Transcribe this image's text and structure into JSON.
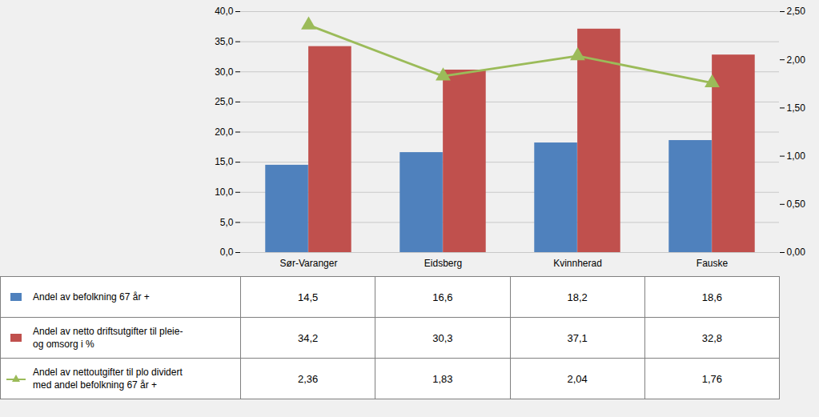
{
  "chart_data": {
    "type": "bar",
    "categories": [
      "Sør-Varanger",
      "Eidsberg",
      "Kvinnherad",
      "Fauske"
    ],
    "series": [
      {
        "name": "Andel av befolkning 67 år +",
        "type": "bar",
        "color": "#4F81BD",
        "values": [
          14.5,
          16.6,
          18.2,
          18.6
        ],
        "value_labels": [
          "14,5",
          "16,6",
          "18,2",
          "18,6"
        ]
      },
      {
        "name": "Andel av netto driftsutgifter til pleie-\nog omsorg i %",
        "type": "bar",
        "color": "#C0504D",
        "values": [
          34.2,
          30.3,
          37.1,
          32.8
        ],
        "value_labels": [
          "34,2",
          "30,3",
          "37,1",
          "32,8"
        ]
      },
      {
        "name": "Andel av nettoutgifter til plo dividert\nmed andel befolkning 67 år +",
        "type": "line",
        "axis": "y2",
        "color": "#9BBB59",
        "marker": "triangle",
        "values": [
          2.36,
          1.83,
          2.04,
          1.76
        ],
        "value_labels": [
          "2,36",
          "1,83",
          "2,04",
          "1,76"
        ]
      }
    ],
    "ylim": [
      0,
      40
    ],
    "yticks": [
      {
        "value": 0,
        "label": "0,0"
      },
      {
        "value": 5,
        "label": "5,0"
      },
      {
        "value": 10,
        "label": "10,0"
      },
      {
        "value": 15,
        "label": "15,0"
      },
      {
        "value": 20,
        "label": "20,0"
      },
      {
        "value": 25,
        "label": "25,0"
      },
      {
        "value": 30,
        "label": "30,0"
      },
      {
        "value": 35,
        "label": "35,0"
      },
      {
        "value": 40,
        "label": "40,0"
      }
    ],
    "y2lim": [
      0,
      2.5
    ],
    "y2ticks": [
      {
        "value": 0,
        "label": "0,00"
      },
      {
        "value": 0.5,
        "label": "0,50"
      },
      {
        "value": 1,
        "label": "1,00"
      },
      {
        "value": 1.5,
        "label": "1,50"
      },
      {
        "value": 2,
        "label": "2,00"
      },
      {
        "value": 2.5,
        "label": "2,50"
      }
    ],
    "grid": true
  }
}
